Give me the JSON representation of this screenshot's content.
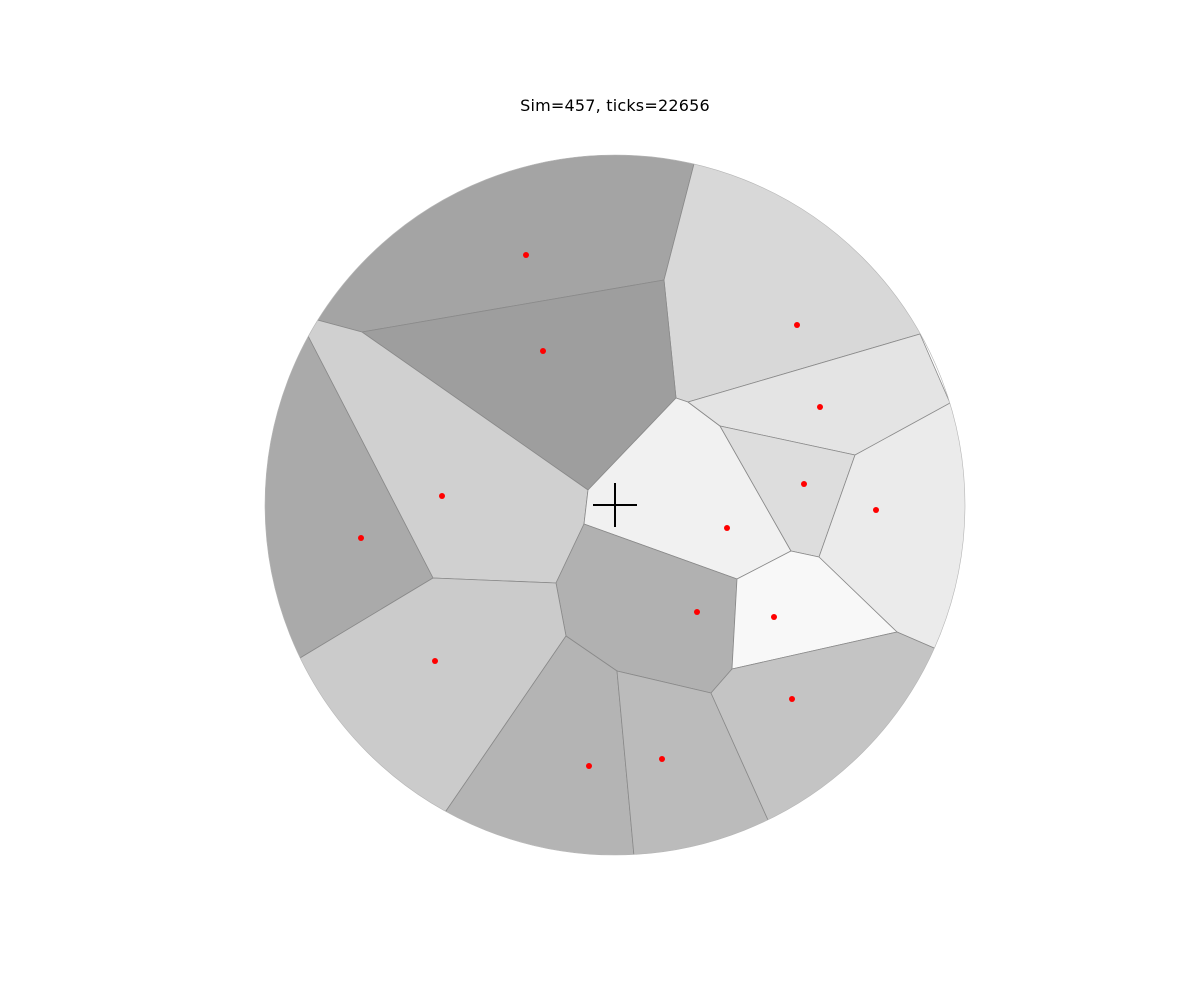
{
  "title": "Sim=457, ticks=22656",
  "colors": {
    "background": "#ffffff",
    "edge": "#8a8a8a",
    "seed": "#ff0000",
    "cursor": "#000000"
  },
  "cursor_icon": "crosshair-icon",
  "cells": [
    {
      "id": "cell-top",
      "shade": "#a4a4a4"
    },
    {
      "id": "cell-top-right",
      "shade": "#d8d8d8"
    },
    {
      "id": "cell-upper-center",
      "shade": "#9e9e9e"
    },
    {
      "id": "cell-left-upper",
      "shade": "#d0d0d0"
    },
    {
      "id": "cell-left",
      "shade": "#aaaaaa"
    },
    {
      "id": "cell-center",
      "shade": "#f1f1f1"
    },
    {
      "id": "cell-right-upper",
      "shade": "#e4e4e4"
    },
    {
      "id": "cell-right-middle",
      "shade": "#dddddd"
    },
    {
      "id": "cell-right",
      "shade": "#ebebeb"
    },
    {
      "id": "cell-center-lower",
      "shade": "#b1b1b1"
    },
    {
      "id": "cell-right-lower",
      "shade": "#f8f8f8"
    },
    {
      "id": "cell-left-lower",
      "shade": "#cbcbcb"
    },
    {
      "id": "cell-bottom-left",
      "shade": "#b4b4b4"
    },
    {
      "id": "cell-bottom-middle",
      "shade": "#bbbbbb"
    },
    {
      "id": "cell-bottom-right",
      "shade": "#c4c4c4"
    }
  ]
}
